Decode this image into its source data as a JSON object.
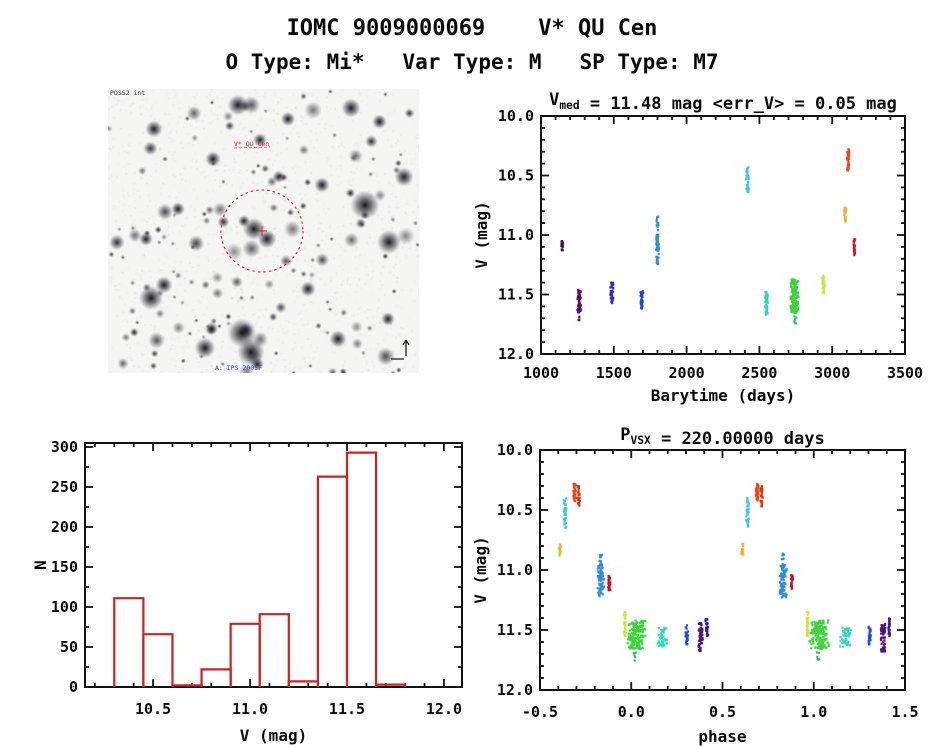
{
  "header": {
    "title": "IOMC 9009000069    V* QU Cen",
    "subtitle": "O Type: Mi*   Var Type: M   SP Type: M7"
  },
  "finder": {
    "survey_label": "POSS2 int",
    "target_label": "V* QU Cen",
    "credit_label": "A: IPS 2005F",
    "circle_color": "#cc2233"
  },
  "chart_data": [
    {
      "id": "lightcurve",
      "type": "scatter",
      "title_parts": [
        {
          "t": "V"
        },
        {
          "t": "med",
          "sub": true
        },
        {
          "t": " = 11.48 mag <err_V> = 0.05 mag"
        }
      ],
      "xlabel": "Barytime (days)",
      "ylabel": "V (mag)",
      "xlim": [
        1000,
        3500
      ],
      "ylim_top_bottom": [
        10.0,
        12.0
      ],
      "xticks": [
        {
          "v": 1000,
          "l": "1000"
        },
        {
          "v": 1500,
          "l": "1500"
        },
        {
          "v": 2000,
          "l": "2000"
        },
        {
          "v": 2500,
          "l": "2500"
        },
        {
          "v": 3000,
          "l": "3000"
        },
        {
          "v": 3500,
          "l": "3500"
        }
      ],
      "yticks": [
        {
          "v": 10.0,
          "l": "10.0"
        },
        {
          "v": 10.5,
          "l": "10.5"
        },
        {
          "v": 11.0,
          "l": "11.0"
        },
        {
          "v": 11.5,
          "l": "11.5"
        },
        {
          "v": 12.0,
          "l": "12.0"
        }
      ],
      "xminor": 100,
      "yminor": 0.1,
      "grid": false,
      "legend": "none",
      "clusters": [
        {
          "x": 1144,
          "xs": 8,
          "v1": 11.05,
          "v2": 11.13,
          "c": "#45105e",
          "n": 22
        },
        {
          "x": 1262,
          "xs": 14,
          "v1": 11.46,
          "v2": 11.66,
          "c": "#5a1070",
          "n": 60
        },
        {
          "x": 1262,
          "xs": 5,
          "v1": 11.68,
          "v2": 11.72,
          "c": "#5a1070",
          "n": 4
        },
        {
          "x": 1486,
          "xs": 13,
          "v1": 11.4,
          "v2": 11.58,
          "c": "#3c28c8",
          "n": 50
        },
        {
          "x": 1692,
          "xs": 11,
          "v1": 11.47,
          "v2": 11.62,
          "c": "#2246dd",
          "n": 40
        },
        {
          "x": 1801,
          "xs": 12,
          "v1": 11.0,
          "v2": 11.25,
          "c": "#2e8fd8",
          "n": 65
        },
        {
          "x": 1801,
          "xs": 9,
          "v1": 10.84,
          "v2": 11.0,
          "c": "#2e8fd8",
          "n": 14
        },
        {
          "x": 2418,
          "xs": 10,
          "v1": 10.43,
          "v2": 10.65,
          "c": "#3ec8e0",
          "n": 42
        },
        {
          "x": 2548,
          "xs": 13,
          "v1": 11.48,
          "v2": 11.67,
          "c": "#2fd8b8",
          "n": 50
        },
        {
          "x": 2740,
          "xs": 32,
          "v1": 11.37,
          "v2": 11.66,
          "c": "#3cd43c",
          "n": 150
        },
        {
          "x": 2745,
          "xs": 12,
          "v1": 11.68,
          "v2": 11.77,
          "c": "#2fc06a",
          "n": 7
        },
        {
          "x": 2938,
          "xs": 12,
          "v1": 11.34,
          "v2": 11.5,
          "c": "#c8e838",
          "n": 35
        },
        {
          "x": 3089,
          "xs": 8,
          "v1": 10.77,
          "v2": 10.89,
          "c": "#f0b030",
          "n": 26
        },
        {
          "x": 3110,
          "xs": 9,
          "v1": 10.27,
          "v2": 10.46,
          "c": "#e8491a",
          "n": 40
        },
        {
          "x": 3151,
          "xs": 7,
          "v1": 11.03,
          "v2": 11.17,
          "c": "#cc1122",
          "n": 30
        }
      ]
    },
    {
      "id": "phase",
      "type": "scatter",
      "title_parts": [
        {
          "t": "P"
        },
        {
          "t": "VSX",
          "sub": true
        },
        {
          "t": " = 220.00000 days"
        }
      ],
      "xlabel": "phase",
      "ylabel": "V (mag)",
      "xlim": [
        -0.5,
        1.5
      ],
      "ylim_top_bottom": [
        10.0,
        12.0
      ],
      "xticks": [
        {
          "v": -0.5,
          "l": "-0.5"
        },
        {
          "v": 0.0,
          "l": "0.0"
        },
        {
          "v": 0.5,
          "l": "0.5"
        },
        {
          "v": 1.0,
          "l": "1.0"
        },
        {
          "v": 1.5,
          "l": "1.5"
        }
      ],
      "yticks": [
        {
          "v": 10.0,
          "l": "10.0"
        },
        {
          "v": 10.5,
          "l": "10.5"
        },
        {
          "v": 11.0,
          "l": "11.0"
        },
        {
          "v": 11.5,
          "l": "11.5"
        },
        {
          "v": 12.0,
          "l": "12.0"
        }
      ],
      "xminor": 0.1,
      "yminor": 0.1,
      "grid": false,
      "legend": "none",
      "repeat_offset": 1.0,
      "clusters": [
        {
          "x": -0.39,
          "xs": 0.008,
          "v1": 10.78,
          "v2": 10.88,
          "c": "#f0b030",
          "n": 20
        },
        {
          "x": -0.363,
          "xs": 0.01,
          "v1": 10.4,
          "v2": 10.65,
          "c": "#3ec8e0",
          "n": 40
        },
        {
          "x": -0.31,
          "xs": 0.009,
          "v1": 10.28,
          "v2": 10.43,
          "c": "#e8491a",
          "n": 32
        },
        {
          "x": -0.287,
          "xs": 0.008,
          "v1": 10.3,
          "v2": 10.47,
          "c": "#e03010",
          "n": 26
        },
        {
          "x": -0.168,
          "xs": 0.022,
          "v1": 10.95,
          "v2": 11.23,
          "c": "#2e8fd8",
          "n": 85
        },
        {
          "x": -0.17,
          "xs": 0.012,
          "v1": 10.86,
          "v2": 10.96,
          "c": "#2e8fd8",
          "n": 8
        },
        {
          "x": -0.12,
          "xs": 0.007,
          "v1": 11.04,
          "v2": 11.17,
          "c": "#cc1122",
          "n": 26
        },
        {
          "x": -0.035,
          "xs": 0.007,
          "v1": 11.35,
          "v2": 11.56,
          "c": "#c8e838",
          "n": 26
        },
        {
          "x": 0.03,
          "xs": 0.055,
          "v1": 11.42,
          "v2": 11.66,
          "c": "#3cd43c",
          "n": 150
        },
        {
          "x": 0.02,
          "xs": 0.01,
          "v1": 11.68,
          "v2": 11.76,
          "c": "#2fc06a",
          "n": 6
        },
        {
          "x": 0.175,
          "xs": 0.04,
          "v1": 11.48,
          "v2": 11.64,
          "c": "#2fd8b8",
          "n": 45
        },
        {
          "x": 0.305,
          "xs": 0.009,
          "v1": 11.46,
          "v2": 11.62,
          "c": "#1f4fd8",
          "n": 26
        },
        {
          "x": 0.38,
          "xs": 0.014,
          "v1": 11.44,
          "v2": 11.68,
          "c": "#55117a",
          "n": 55
        },
        {
          "x": 0.415,
          "xs": 0.009,
          "v1": 11.4,
          "v2": 11.56,
          "c": "#3a1899",
          "n": 26
        }
      ]
    },
    {
      "id": "hist",
      "type": "bar",
      "title_parts": [],
      "xlabel": "V (mag)",
      "ylabel": "N",
      "xlim": [
        10.149,
        12.093
      ],
      "ylim": [
        0,
        305
      ],
      "xticks": [
        {
          "v": 10.5,
          "l": "10.5"
        },
        {
          "v": 11.0,
          "l": "11.0"
        },
        {
          "v": 11.5,
          "l": "11.5"
        },
        {
          "v": 12.0,
          "l": "12.0"
        }
      ],
      "yticks": [
        {
          "v": 0,
          "l": "0"
        },
        {
          "v": 50,
          "l": "50"
        },
        {
          "v": 100,
          "l": "100"
        },
        {
          "v": 150,
          "l": "150"
        },
        {
          "v": 200,
          "l": "200"
        },
        {
          "v": 250,
          "l": "250"
        },
        {
          "v": 300,
          "l": "300"
        }
      ],
      "xminor": 0.1,
      "yminor": 25,
      "grid": false,
      "legend": "none",
      "bar_color": "#cc2222",
      "bin_start": 10.3,
      "bin_width": 0.15,
      "values": [
        111,
        66,
        2,
        22,
        79,
        91,
        7,
        263,
        293,
        3
      ]
    }
  ]
}
